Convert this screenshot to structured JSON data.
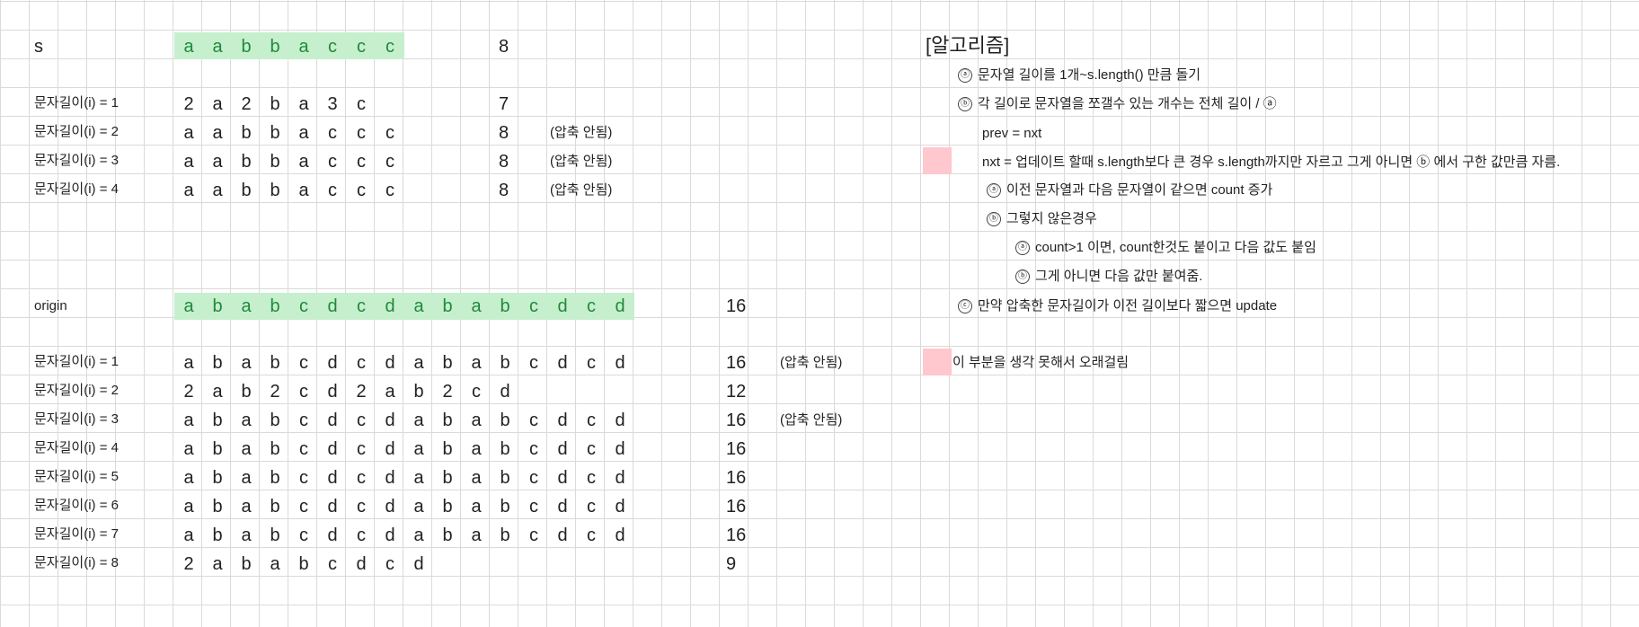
{
  "top": {
    "label": "s",
    "chars": [
      "a",
      "a",
      "b",
      "b",
      "a",
      "c",
      "c",
      "c"
    ],
    "count": "8",
    "rows": [
      {
        "label": "문자길이(i) = 1",
        "chars": [
          "2",
          "a",
          "2",
          "b",
          "a",
          "3",
          "c"
        ],
        "count": "7",
        "note": ""
      },
      {
        "label": "문자길이(i) = 2",
        "chars": [
          "a",
          "a",
          "b",
          "b",
          "a",
          "c",
          "c",
          "c"
        ],
        "count": "8",
        "note": "(압축 안됨)"
      },
      {
        "label": "문자길이(i) = 3",
        "chars": [
          "a",
          "a",
          "b",
          "b",
          "a",
          "c",
          "c",
          "c"
        ],
        "count": "8",
        "note": "(압축 안됨)"
      },
      {
        "label": "문자길이(i) = 4",
        "chars": [
          "a",
          "a",
          "b",
          "b",
          "a",
          "c",
          "c",
          "c"
        ],
        "count": "8",
        "note": "(압축 안됨)"
      }
    ]
  },
  "bottom": {
    "label": "origin",
    "chars": [
      "a",
      "b",
      "a",
      "b",
      "c",
      "d",
      "c",
      "d",
      "a",
      "b",
      "a",
      "b",
      "c",
      "d",
      "c",
      "d"
    ],
    "count": "16",
    "rows": [
      {
        "label": "문자길이(i) = 1",
        "chars": [
          "a",
          "b",
          "a",
          "b",
          "c",
          "d",
          "c",
          "d",
          "a",
          "b",
          "a",
          "b",
          "c",
          "d",
          "c",
          "d"
        ],
        "count": "16",
        "note": "(압축 안됨)"
      },
      {
        "label": "문자길이(i) = 2",
        "chars": [
          "2",
          "a",
          "b",
          "2",
          "c",
          "d",
          "2",
          "a",
          "b",
          "2",
          "c",
          "d"
        ],
        "count": "12",
        "note": ""
      },
      {
        "label": "문자길이(i) = 3",
        "chars": [
          "a",
          "b",
          "a",
          "b",
          "c",
          "d",
          "c",
          "d",
          "a",
          "b",
          "a",
          "b",
          "c",
          "d",
          "c",
          "d"
        ],
        "count": "16",
        "note": "(압축 안됨)"
      },
      {
        "label": "문자길이(i) = 4",
        "chars": [
          "a",
          "b",
          "a",
          "b",
          "c",
          "d",
          "c",
          "d",
          "a",
          "b",
          "a",
          "b",
          "c",
          "d",
          "c",
          "d"
        ],
        "count": "16",
        "note": ""
      },
      {
        "label": "문자길이(i) = 5",
        "chars": [
          "a",
          "b",
          "a",
          "b",
          "c",
          "d",
          "c",
          "d",
          "a",
          "b",
          "a",
          "b",
          "c",
          "d",
          "c",
          "d"
        ],
        "count": "16",
        "note": ""
      },
      {
        "label": "문자길이(i) = 6",
        "chars": [
          "a",
          "b",
          "a",
          "b",
          "c",
          "d",
          "c",
          "d",
          "a",
          "b",
          "a",
          "b",
          "c",
          "d",
          "c",
          "d"
        ],
        "count": "16",
        "note": ""
      },
      {
        "label": "문자길이(i) = 7",
        "chars": [
          "a",
          "b",
          "a",
          "b",
          "c",
          "d",
          "c",
          "d",
          "a",
          "b",
          "a",
          "b",
          "c",
          "d",
          "c",
          "d"
        ],
        "count": "16",
        "note": ""
      },
      {
        "label": "문자길이(i) = 8",
        "chars": [
          "2",
          "a",
          "b",
          "a",
          "b",
          "c",
          "d",
          "c",
          "d"
        ],
        "count": "9",
        "note": ""
      }
    ]
  },
  "algorithm": {
    "title": "[알고리즘]",
    "lines": [
      {
        "marker": "ⓐ",
        "text": "문자열 길이를 1개~s.length() 만큼 돌기"
      },
      {
        "marker": "ⓑ",
        "text": "각 길이로 문자열을 쪼갤수 있는 개수는 전체 길이 / ⓐ"
      },
      {
        "marker": "",
        "text": "prev = nxt"
      },
      {
        "marker": "",
        "text": "nxt = 업데이트 할때 s.length보다 큰 경우 s.length까지만 자르고 그게 아니면 ⓑ 에서 구한 값만큼 자름."
      },
      {
        "marker": "ⓐ",
        "text": "이전 문자열과 다음 문자열이 같으면 count 증가"
      },
      {
        "marker": "ⓑ",
        "text": "그렇지 않은경우"
      },
      {
        "marker": "ⓐ",
        "text": "count>1 이면, count한것도 붙이고 다음 값도 붙임"
      },
      {
        "marker": "ⓑ",
        "text": "그게 아니면 다음 값만 붙여줌."
      },
      {
        "marker": "ⓒ",
        "text": "만약 압축한 문자길이가 이전 길이보다 짧으면 update"
      }
    ],
    "note": "이 부분을 생각 못해서 오래걸림"
  },
  "colors": {
    "highlight_green": "#c6efce",
    "highlight_pink": "#ffc7ce"
  }
}
